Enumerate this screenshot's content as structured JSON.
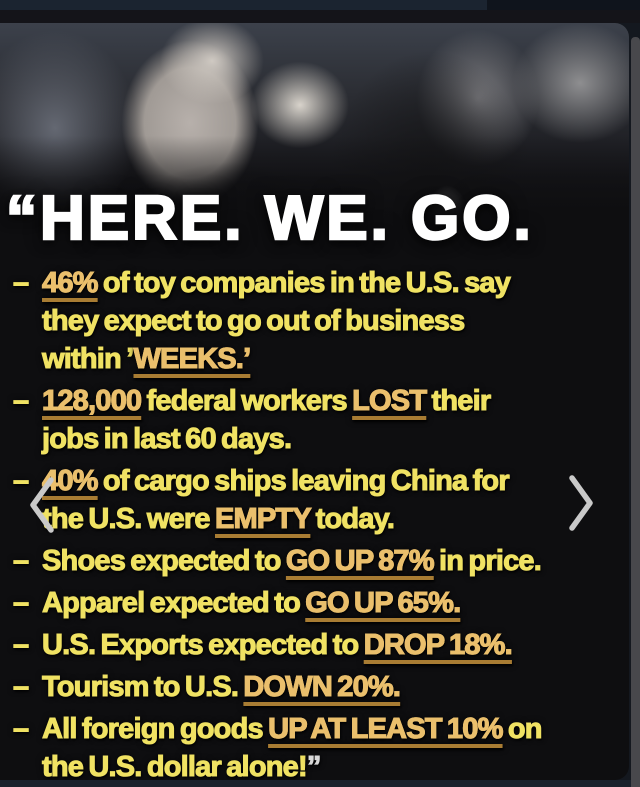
{
  "meme": {
    "headline": "“HERE. WE. GO.",
    "dash": "–",
    "bullets": [
      {
        "lines": [
          [
            {
              "t": "46%",
              "em": true
            },
            {
              "t": " of toy companies in the U.S. say"
            }
          ],
          [
            {
              "t": "they expect to go out of business"
            }
          ],
          [
            {
              "t": "within ’"
            },
            {
              "t": "WEEKS.’",
              "em": true
            }
          ]
        ]
      },
      {
        "lines": [
          [
            {
              "t": "128,000",
              "em": true
            },
            {
              "t": " federal workers "
            },
            {
              "t": "LOST",
              "em": true
            },
            {
              "t": " their"
            }
          ],
          [
            {
              "t": "jobs in last 60 days."
            }
          ]
        ]
      },
      {
        "lines": [
          [
            {
              "t": "40%",
              "em": true
            },
            {
              "t": " of cargo ships leaving China for"
            }
          ],
          [
            {
              "t": "the U.S. were "
            },
            {
              "t": "EMPTY",
              "em": true
            },
            {
              "t": " today."
            }
          ]
        ]
      },
      {
        "lines": [
          [
            {
              "t": "Shoes expected to "
            },
            {
              "t": "GO UP 87%",
              "em": true
            },
            {
              "t": " in price."
            }
          ]
        ]
      },
      {
        "lines": [
          [
            {
              "t": "Apparel expected to "
            },
            {
              "t": "GO UP 65%.",
              "em": true
            }
          ]
        ]
      },
      {
        "lines": [
          [
            {
              "t": "U.S. Exports expected to "
            },
            {
              "t": "DROP 18%.",
              "em": true
            }
          ]
        ]
      },
      {
        "lines": [
          [
            {
              "t": "Tourism to U.S. "
            },
            {
              "t": "DOWN 20%.",
              "em": true
            }
          ]
        ]
      },
      {
        "lines": [
          [
            {
              "t": "All foreign goods "
            },
            {
              "t": "UP AT LEAST 10%",
              "em": true
            },
            {
              "t": " on"
            }
          ],
          [
            {
              "t": "the U.S. dollar alone!"
            },
            {
              "t": "”",
              "quote": true
            }
          ]
        ]
      }
    ]
  },
  "carousel": {
    "prev_label": "previous image",
    "next_label": "next image"
  },
  "colors": {
    "text_yellow": "#f0e263",
    "text_orange": "#eabf6c",
    "underline": "#a87c33",
    "headline_white": "#ffffff",
    "chevron_gray": "#c9c9c9",
    "scrollbar_gray": "#48484c",
    "topbar_navy": "#1b2430"
  }
}
